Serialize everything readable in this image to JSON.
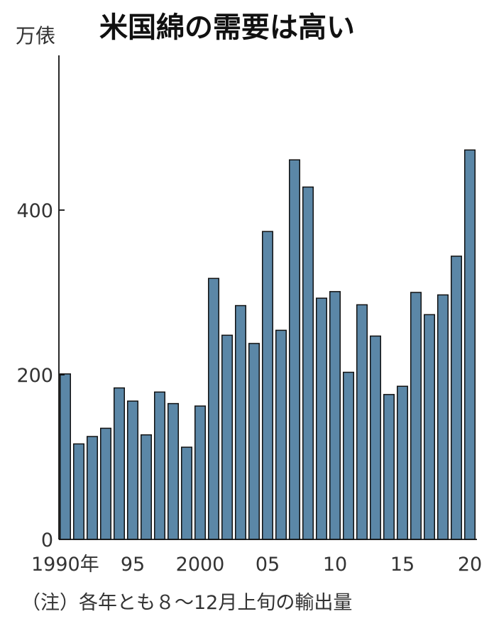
{
  "title": "米国綿の需要は高い",
  "unit": "万俵",
  "note": "（注）各年とも８～12月上旬の輸出量",
  "chart_data": {
    "type": "bar",
    "title": "米国綿の需要は高い",
    "ylabel": "万俵",
    "ylim": [
      0,
      600
    ],
    "yticks": [
      "0",
      "200",
      "400"
    ],
    "categories": [
      "1990",
      "1991",
      "1992",
      "1993",
      "1994",
      "1995",
      "1996",
      "1997",
      "1998",
      "1999",
      "2000",
      "2001",
      "2002",
      "2003",
      "2004",
      "2005",
      "2006",
      "2007",
      "2008",
      "2009",
      "2010",
      "2011",
      "2012",
      "2013",
      "2014",
      "2015",
      "2016",
      "2017",
      "2018",
      "2019",
      "2020"
    ],
    "values": [
      201,
      116,
      125,
      135,
      184,
      168,
      127,
      179,
      165,
      112,
      162,
      317,
      248,
      284,
      238,
      374,
      254,
      461,
      428,
      293,
      301,
      203,
      285,
      247,
      176,
      186,
      300,
      273,
      297,
      344,
      473
    ],
    "xtick_labels": [
      {
        "index": 0,
        "text": "1990年"
      },
      {
        "index": 5,
        "text": "95"
      },
      {
        "index": 10,
        "text": "2000"
      },
      {
        "index": 15,
        "text": "05"
      },
      {
        "index": 20,
        "text": "10"
      },
      {
        "index": 25,
        "text": "15"
      },
      {
        "index": 30,
        "text": "20"
      }
    ],
    "grid": false,
    "bar_color": "#5b87a7"
  }
}
